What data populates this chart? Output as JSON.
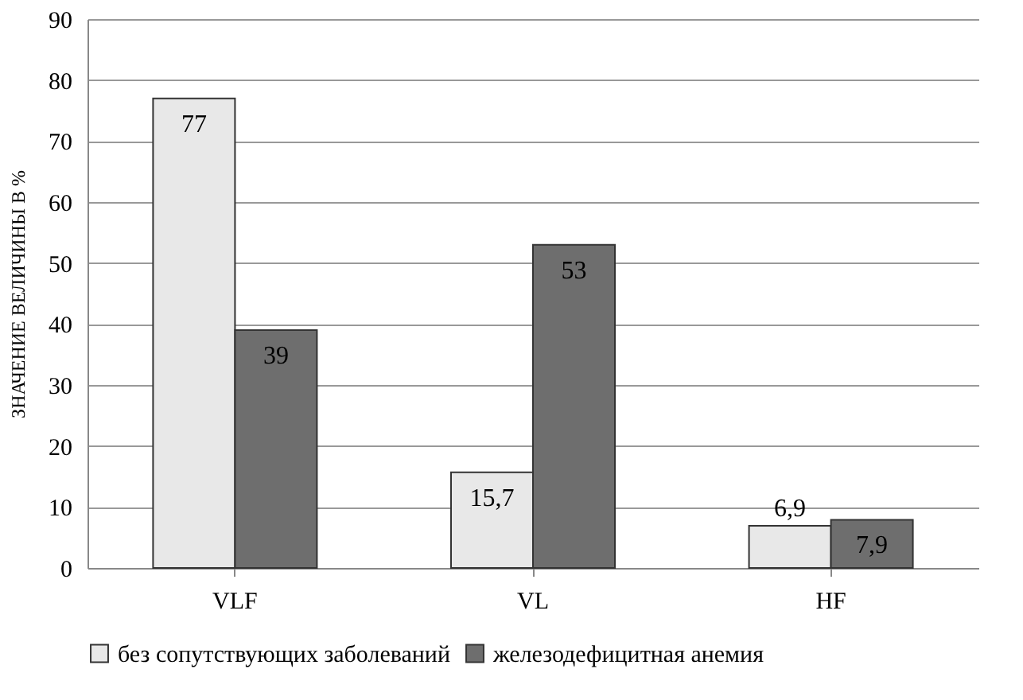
{
  "chart_data": {
    "type": "bar",
    "ylabel": "ЗНАЧЕНИЕ ВЕЛИЧИНЫ В %",
    "categories": [
      "VLF",
      "VL",
      "HF"
    ],
    "series": [
      {
        "name": "без сопутствующих заболеваний",
        "color": "#e8e8e8",
        "values": [
          77,
          15.7,
          6.9
        ],
        "value_labels": [
          "77",
          "15,7",
          "6,9"
        ]
      },
      {
        "name": "железодефицитная анемия",
        "color": "#6e6e6e",
        "values": [
          39,
          53,
          7.9
        ],
        "value_labels": [
          "39",
          "53",
          "7,9"
        ]
      }
    ],
    "ylim": [
      0,
      90
    ],
    "yticks": [
      0,
      10,
      20,
      30,
      40,
      50,
      60,
      70,
      80,
      90
    ],
    "grid": "y",
    "legend": "bottom"
  }
}
